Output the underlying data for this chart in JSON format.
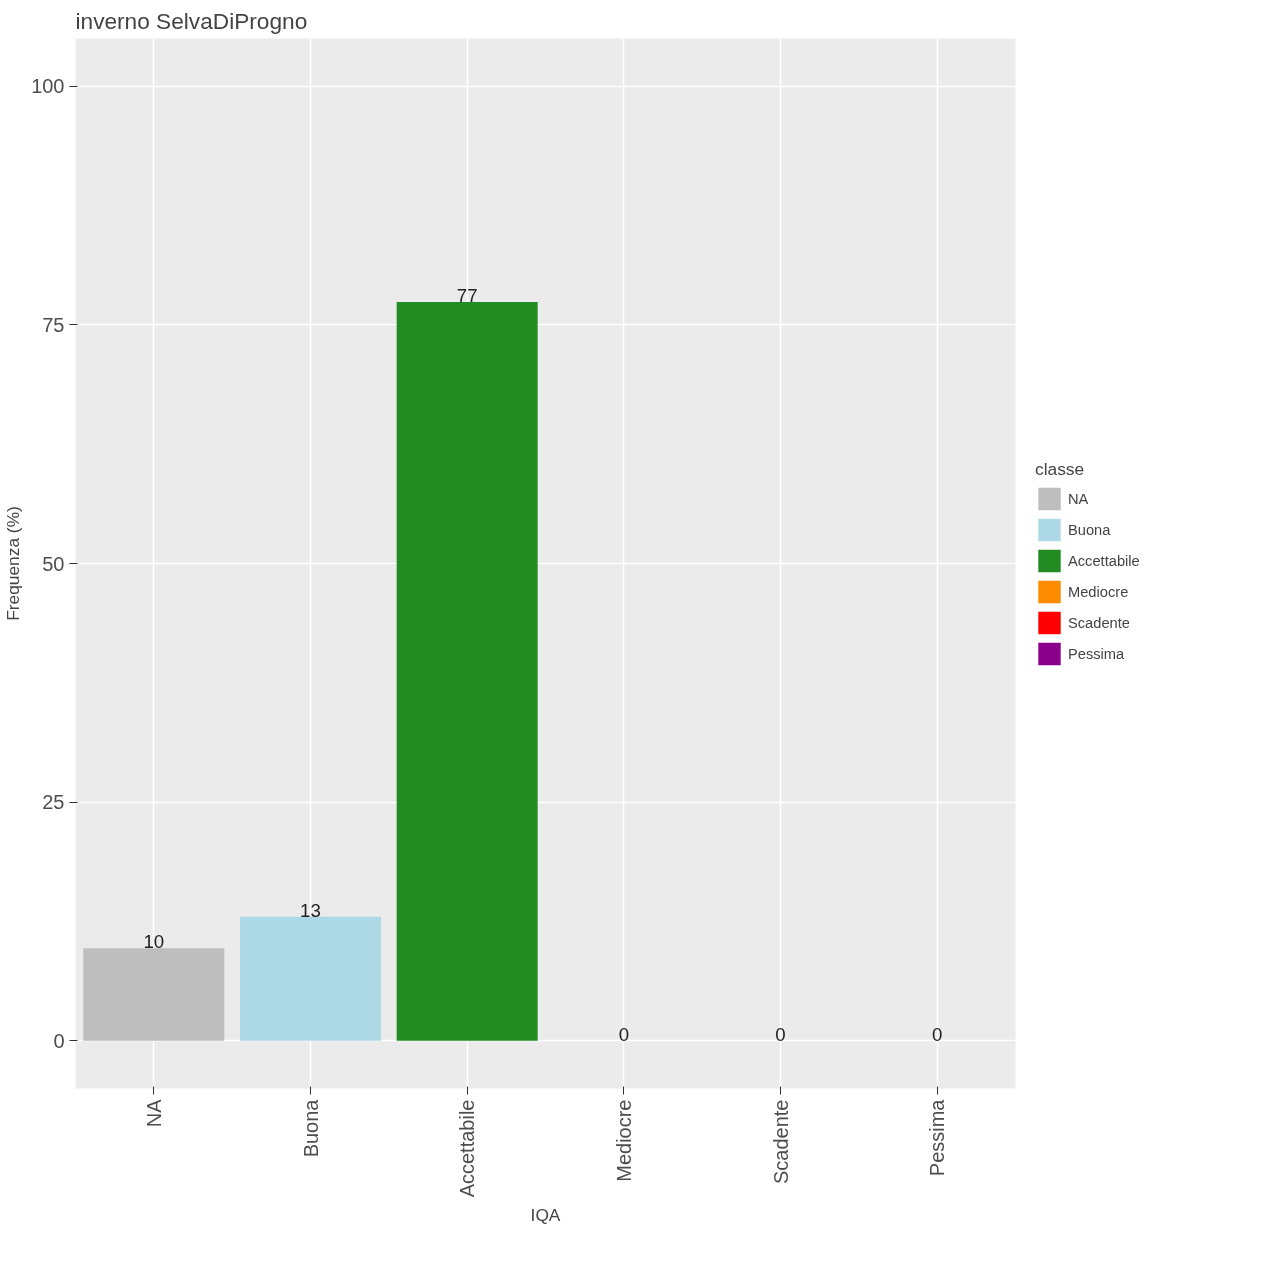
{
  "chart_data": {
    "type": "bar",
    "title": "inverno SelvaDiProgno",
    "xlabel": "IQA",
    "ylabel": "Frequenza (%)",
    "legend_title": "classe",
    "categories": [
      "NA",
      "Buona",
      "Accettabile",
      "Mediocre",
      "Scadente",
      "Pessima"
    ],
    "series": [
      {
        "name": "NA",
        "color": "#bebebe",
        "values": [
          9.7,
          null,
          null,
          null,
          null,
          null
        ],
        "value_labels": [
          "10",
          null,
          null,
          null,
          null,
          null
        ]
      },
      {
        "name": "Buona",
        "color": "#add8e6",
        "values": [
          null,
          13.0,
          null,
          null,
          null,
          null
        ],
        "value_labels": [
          null,
          "13",
          null,
          null,
          null,
          null
        ]
      },
      {
        "name": "Accettabile",
        "color": "#228b22",
        "values": [
          null,
          null,
          77.4,
          null,
          null,
          null
        ],
        "value_labels": [
          null,
          null,
          "77",
          null,
          null,
          null
        ]
      },
      {
        "name": "Mediocre",
        "color": "#ff8c00",
        "values": [
          null,
          null,
          null,
          0,
          null,
          null
        ],
        "value_labels": [
          null,
          null,
          null,
          "0",
          null,
          null
        ]
      },
      {
        "name": "Scadente",
        "color": "#ff0000",
        "values": [
          null,
          null,
          null,
          null,
          0,
          null
        ],
        "value_labels": [
          null,
          null,
          null,
          null,
          "0",
          null
        ]
      },
      {
        "name": "Pessima",
        "color": "#8b008b",
        "values": [
          null,
          null,
          null,
          null,
          null,
          0
        ],
        "value_labels": [
          null,
          null,
          null,
          null,
          null,
          "0"
        ]
      }
    ],
    "ylim": [
      -5,
      105
    ],
    "yticks": [
      0,
      25,
      50,
      75,
      100
    ],
    "grid": true,
    "legend": "right"
  }
}
